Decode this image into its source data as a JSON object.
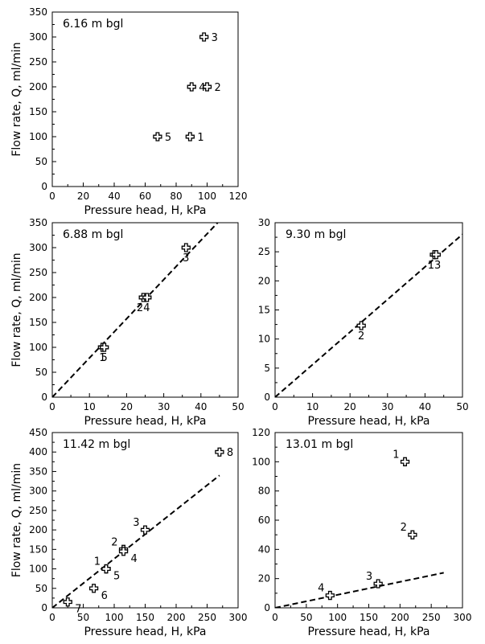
{
  "chart_data": [
    {
      "type": "scatter",
      "title": "6.16 m bgl",
      "xlabel": "Pressure head, H, kPa",
      "ylabel": "Flow rate, Q, ml/min",
      "xlim": [
        0,
        120
      ],
      "ylim": [
        0,
        350
      ],
      "xticks": [
        "0",
        "20",
        "40",
        "60",
        "80",
        "100",
        "120"
      ],
      "yticks": [
        "0",
        "50",
        "100",
        "150",
        "200",
        "250",
        "300",
        "350"
      ],
      "points": [
        {
          "label": "3",
          "x": 98,
          "y": 300,
          "pos": "right"
        },
        {
          "label": "4",
          "x": 90,
          "y": 200,
          "pos": "right"
        },
        {
          "label": "2",
          "x": 100,
          "y": 200,
          "pos": "right"
        },
        {
          "label": "5",
          "x": 68,
          "y": 100,
          "pos": "right"
        },
        {
          "label": "1",
          "x": 89,
          "y": 100,
          "pos": "right"
        }
      ],
      "fit_line": null
    },
    {
      "type": "scatter",
      "title": "6.88 m bgl",
      "xlabel": "Pressure head, H, kPa",
      "ylabel": "Flow rate, Q, ml/min",
      "xlim": [
        0,
        50
      ],
      "ylim": [
        0,
        350
      ],
      "xticks": [
        "0",
        "10",
        "20",
        "30",
        "40",
        "50"
      ],
      "yticks": [
        "0",
        "50",
        "100",
        "150",
        "200",
        "250",
        "300",
        "350"
      ],
      "points": [
        {
          "label": "3",
          "x": 36,
          "y": 300,
          "pos": "below"
        },
        {
          "label": "2",
          "x": 24.5,
          "y": 200,
          "pos": "below"
        },
        {
          "label": "4",
          "x": 25.5,
          "y": 200,
          "pos": "below"
        },
        {
          "label": "1",
          "x": 13.5,
          "y": 100,
          "pos": "below"
        },
        {
          "label": "5",
          "x": 14,
          "y": 100,
          "pos": "below"
        }
      ],
      "fit_line": {
        "x": [
          0,
          44.5
        ],
        "y": [
          0,
          350
        ]
      }
    },
    {
      "type": "scatter",
      "title": "9.30 m bgl",
      "xlabel": "Pressure head, H, kPa",
      "ylabel": "",
      "xlim": [
        0,
        50
      ],
      "ylim": [
        0,
        30
      ],
      "xticks": [
        "0",
        "10",
        "20",
        "30",
        "40",
        "50"
      ],
      "yticks": [
        "0",
        "5",
        "10",
        "15",
        "20",
        "25",
        "30"
      ],
      "points": [
        {
          "label": "1",
          "x": 42.5,
          "y": 24.5,
          "pos": "below"
        },
        {
          "label": "3",
          "x": 43,
          "y": 24.5,
          "pos": "below"
        },
        {
          "label": "2",
          "x": 23,
          "y": 12.3,
          "pos": "below"
        }
      ],
      "fit_line": {
        "x": [
          0,
          50
        ],
        "y": [
          0,
          28
        ]
      }
    },
    {
      "type": "scatter",
      "title": "11.42 m bgl",
      "xlabel": "Pressure head, H, kPa",
      "ylabel": "Flow rate, Q, ml/min",
      "xlim": [
        0,
        300
      ],
      "ylim": [
        0,
        450
      ],
      "xticks": [
        "0",
        "50",
        "100",
        "150",
        "200",
        "250",
        "300"
      ],
      "yticks": [
        "0",
        "50",
        "100",
        "150",
        "200",
        "250",
        "300",
        "350",
        "400",
        "450"
      ],
      "points": [
        {
          "label": "8",
          "x": 270,
          "y": 400,
          "pos": "right"
        },
        {
          "label": "3",
          "x": 150,
          "y": 200,
          "pos": "above-left"
        },
        {
          "label": "2",
          "x": 115,
          "y": 150,
          "pos": "above-left"
        },
        {
          "label": "4",
          "x": 115,
          "y": 145,
          "pos": "below-right"
        },
        {
          "label": "1",
          "x": 87,
          "y": 100,
          "pos": "above-left"
        },
        {
          "label": "5",
          "x": 87,
          "y": 100,
          "pos": "below-right"
        },
        {
          "label": "6",
          "x": 67,
          "y": 50,
          "pos": "below-right"
        },
        {
          "label": "7",
          "x": 25,
          "y": 15,
          "pos": "below-right"
        }
      ],
      "fit_line": {
        "x": [
          0,
          270
        ],
        "y": [
          0,
          340
        ]
      }
    },
    {
      "type": "scatter",
      "title": "13.01 m bgl",
      "xlabel": "Pressure head, H, kPa",
      "ylabel": "",
      "xlim": [
        0,
        300
      ],
      "ylim": [
        0,
        120
      ],
      "xticks": [
        "0",
        "50",
        "100",
        "150",
        "200",
        "250",
        "300"
      ],
      "yticks": [
        "0",
        "20",
        "40",
        "60",
        "80",
        "100",
        "120"
      ],
      "points": [
        {
          "label": "1",
          "x": 208,
          "y": 100,
          "pos": "above-left"
        },
        {
          "label": "2",
          "x": 220,
          "y": 50,
          "pos": "above-left"
        },
        {
          "label": "3",
          "x": 165,
          "y": 16.5,
          "pos": "above-left"
        },
        {
          "label": "4",
          "x": 88,
          "y": 8.5,
          "pos": "above-left"
        }
      ],
      "fit_line": {
        "x": [
          0,
          270
        ],
        "y": [
          0,
          24
        ]
      }
    }
  ]
}
